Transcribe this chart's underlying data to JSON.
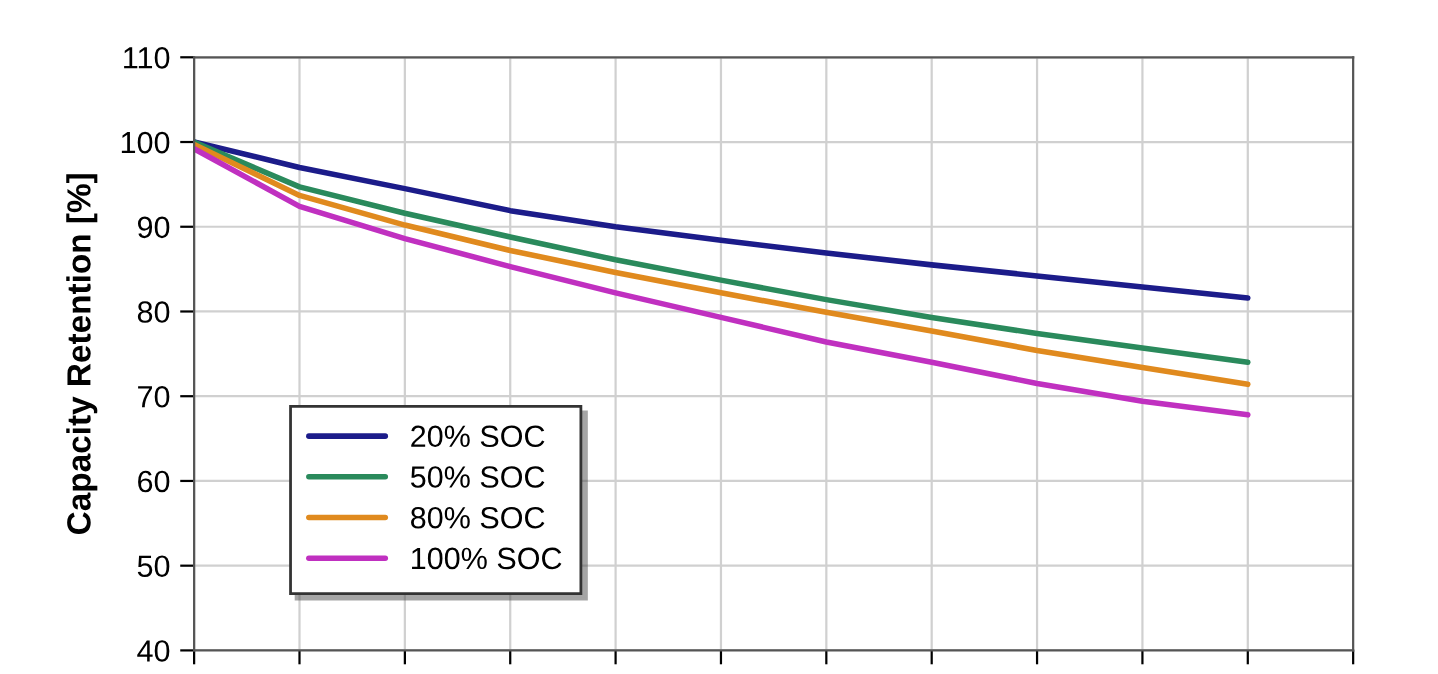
{
  "chart_data": {
    "type": "line",
    "ylabel": "Capacity Retention [%]",
    "categories": [
      null,
      null,
      null,
      null,
      null,
      null,
      null,
      null,
      null,
      null,
      null
    ],
    "ylim": [
      40,
      110
    ],
    "yticks": [
      40,
      50,
      60,
      70,
      80,
      90,
      100,
      110
    ],
    "tick_labels": "y",
    "grid": true,
    "legend": "bottom left",
    "marker": "none",
    "line_style": "solid",
    "series": [
      {
        "name": "20% SOC",
        "color": "#1c1c8a",
        "values": [
          100,
          97.0,
          94.5,
          91.9,
          90.0,
          88.4,
          86.9,
          85.5,
          84.2,
          82.9,
          81.6
        ]
      },
      {
        "name": "50% SOC",
        "color": "#2a8a5c",
        "values": [
          100,
          94.7,
          91.6,
          88.8,
          86.1,
          83.7,
          81.4,
          79.3,
          77.4,
          75.7,
          74.0
        ]
      },
      {
        "name": "80% SOC",
        "color": "#e08a1e",
        "values": [
          99.7,
          93.7,
          90.2,
          87.2,
          84.6,
          82.2,
          79.9,
          77.7,
          75.4,
          73.4,
          71.4
        ]
      },
      {
        "name": "100% SOC",
        "color": "#c030c0",
        "values": [
          99.2,
          92.4,
          88.6,
          85.3,
          82.2,
          79.3,
          76.4,
          74.0,
          71.5,
          69.4,
          67.8
        ]
      }
    ]
  }
}
